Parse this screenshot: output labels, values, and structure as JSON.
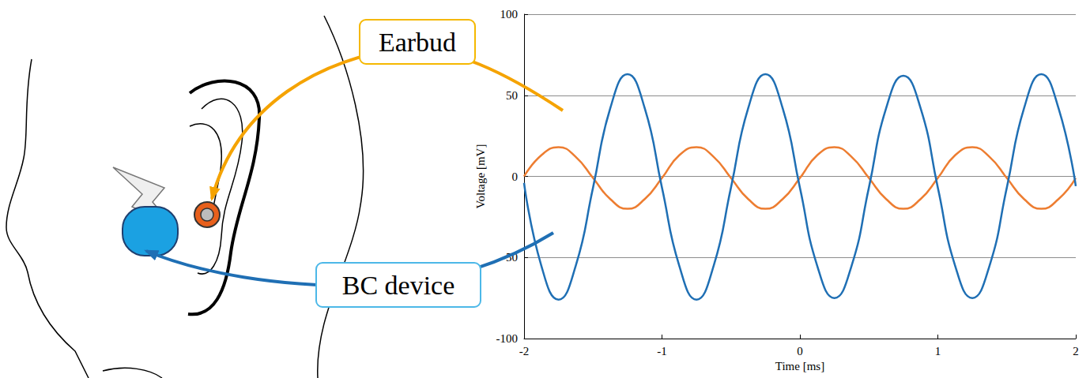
{
  "chart_data": {
    "type": "line",
    "xlabel": "Time [ms]",
    "ylabel": "Voltage [mV]",
    "x": [
      -2,
      -1.875,
      -1.75,
      -1.625,
      -1.5,
      -1.375,
      -1.25,
      -1.125,
      -1,
      -0.875,
      -0.75,
      -0.625,
      -0.5,
      -0.375,
      -0.25,
      -0.125,
      0,
      0.125,
      0.25,
      0.375,
      0.5,
      0.625,
      0.75,
      0.875,
      1,
      1.125,
      1.25,
      1.375,
      1.5,
      1.625,
      1.75,
      1.875,
      2
    ],
    "series": [
      {
        "name": "Earbud",
        "color": "#ED7D31",
        "values": [
          0,
          13,
          18,
          12,
          -1,
          -14,
          -20,
          -14,
          -1,
          13,
          18,
          12,
          -1,
          -14,
          -20,
          -14,
          -1,
          13,
          18,
          12,
          -1,
          -14,
          -20,
          -14,
          -1,
          13,
          18,
          12,
          -1,
          -14,
          -20,
          -14,
          -1
        ]
      },
      {
        "name": "BC device",
        "color": "#1F6FB4",
        "values": [
          -4,
          -55,
          -76,
          -55,
          -7,
          42,
          63,
          42,
          -7,
          -55,
          -76,
          -55,
          -7,
          42,
          63,
          42,
          -7,
          -55,
          -75,
          -55,
          -7,
          42,
          62,
          42,
          -7,
          -55,
          -75,
          -55,
          -7,
          42,
          63,
          42,
          -6
        ]
      }
    ],
    "xlim": [
      -2,
      2
    ],
    "xticks": [
      -2,
      -1,
      0,
      1,
      2
    ],
    "ylim": [
      -100,
      100
    ],
    "yticks": [
      -100,
      -50,
      0,
      50,
      100
    ],
    "grid": true
  }
}
